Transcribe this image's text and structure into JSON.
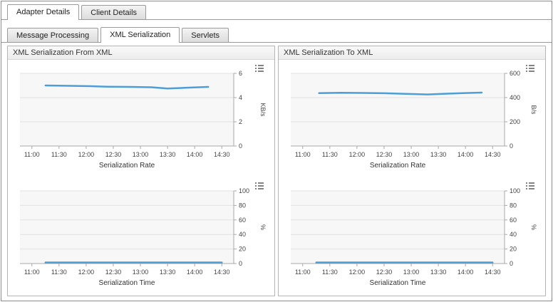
{
  "tabs": {
    "top": [
      {
        "label": "Adapter Details",
        "active": true
      },
      {
        "label": "Client Details",
        "active": false
      }
    ],
    "sub": [
      {
        "label": "Message Processing",
        "active": false
      },
      {
        "label": "XML Serialization",
        "active": true
      },
      {
        "label": "Servlets",
        "active": false
      }
    ]
  },
  "panels": [
    {
      "title": "XML Serialization From XML"
    },
    {
      "title": "XML Serialization To XML"
    }
  ],
  "colors": {
    "line": "#4d9dd6",
    "grid": "#e2e2e2",
    "plot_bg": "#f7f7f7",
    "axis": "#a8a8a8",
    "tick_text": "#444444",
    "title_text": "#333333"
  },
  "chart_data": [
    {
      "type": "line",
      "panel": "XML Serialization From XML",
      "xlabel": "Serialization Rate",
      "ylabel": "KB/s",
      "ylim": [
        0,
        6
      ],
      "yticks": [
        0,
        2,
        4,
        6
      ],
      "xlim": [
        10.78,
        14.72
      ],
      "xtick_values": [
        11,
        11.5,
        12,
        12.5,
        13,
        13.5,
        14,
        14.5
      ],
      "xtick_labels": [
        "11:00",
        "11:30",
        "12:00",
        "12:30",
        "13:00",
        "13:30",
        "14:00",
        "14:30"
      ],
      "series": {
        "x": [
          11.25,
          11.6,
          12.0,
          12.4,
          12.8,
          13.2,
          13.5,
          13.9,
          14.25
        ],
        "y": [
          5.0,
          4.98,
          4.95,
          4.9,
          4.88,
          4.85,
          4.75,
          4.82,
          4.88
        ]
      }
    },
    {
      "type": "line",
      "panel": "XML Serialization From XML",
      "xlabel": "Serialization Time",
      "ylabel": "%",
      "ylim": [
        0,
        100
      ],
      "yticks": [
        0,
        20,
        40,
        60,
        80,
        100
      ],
      "xlim": [
        10.78,
        14.72
      ],
      "xtick_values": [
        11,
        11.5,
        12,
        12.5,
        13,
        13.5,
        14,
        14.5
      ],
      "xtick_labels": [
        "11:00",
        "11:30",
        "12:00",
        "12:30",
        "13:00",
        "13:30",
        "14:00",
        "14:30"
      ],
      "series": {
        "x": [
          11.25,
          11.75,
          12.25,
          12.75,
          13.25,
          13.75,
          14.25,
          14.5
        ],
        "y": [
          1.5,
          1.5,
          1.5,
          1.5,
          1.5,
          1.5,
          1.5,
          1.5
        ]
      }
    },
    {
      "type": "line",
      "panel": "XML Serialization To XML",
      "xlabel": "Serialization Rate",
      "ylabel": "B/s",
      "ylim": [
        0,
        600
      ],
      "yticks": [
        0,
        200,
        400,
        600
      ],
      "xlim": [
        10.78,
        14.72
      ],
      "xtick_values": [
        11,
        11.5,
        12,
        12.5,
        13,
        13.5,
        14,
        14.5
      ],
      "xtick_labels": [
        "11:00",
        "11:30",
        "12:00",
        "12:30",
        "13:00",
        "13:30",
        "14:00",
        "14:30"
      ],
      "series": {
        "x": [
          11.3,
          11.7,
          12.1,
          12.5,
          12.9,
          13.3,
          13.7,
          14.05,
          14.3
        ],
        "y": [
          437,
          440,
          438,
          436,
          431,
          426,
          433,
          438,
          441
        ]
      }
    },
    {
      "type": "line",
      "panel": "XML Serialization To XML",
      "xlabel": "Serialization Time",
      "ylabel": "%",
      "ylim": [
        0,
        100
      ],
      "yticks": [
        0,
        20,
        40,
        60,
        80,
        100
      ],
      "xlim": [
        10.78,
        14.72
      ],
      "xtick_values": [
        11,
        11.5,
        12,
        12.5,
        13,
        13.5,
        14,
        14.5
      ],
      "xtick_labels": [
        "11:00",
        "11:30",
        "12:00",
        "12:30",
        "13:00",
        "13:30",
        "14:00",
        "14:30"
      ],
      "series": {
        "x": [
          11.25,
          11.75,
          12.25,
          12.75,
          13.25,
          13.75,
          14.25,
          14.5
        ],
        "y": [
          1.5,
          1.5,
          1.5,
          1.5,
          1.5,
          1.5,
          1.5,
          1.5
        ]
      }
    }
  ]
}
